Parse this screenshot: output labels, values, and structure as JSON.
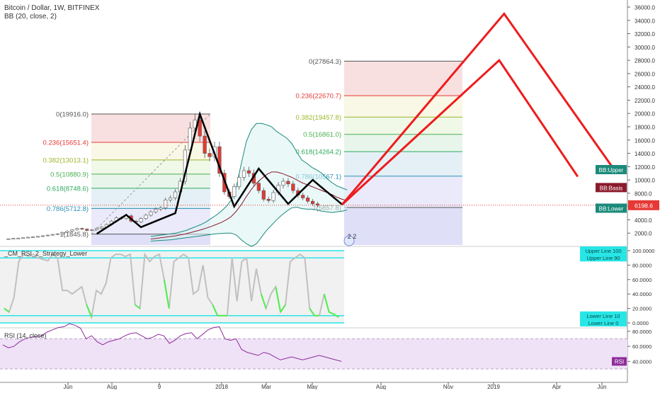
{
  "header": {
    "symbol_title": "Bitcoin / Dollar, 1W, BITFINEX",
    "indicator_bb": "BB (20, close, 2)"
  },
  "colors": {
    "up_candle": "#ffffff",
    "down_candle": "#e53935",
    "candle_outline": "#555555",
    "bb_upper": "#1b8a7a",
    "bb_basis": "#8b1a2c",
    "bb_lower": "#1b8a7a",
    "bb_fill": "#d9f2f2",
    "pattern_line": "#000000",
    "projection_line": "#ee1c1c",
    "rsi_line": "#8e2c9a",
    "rsi_band": "#efe2f7",
    "stoch_line": "#c0c0c0",
    "stoch_low_signal": "#4ef04e",
    "cyan_line": "#28e6e6",
    "price_line": "#e53935"
  },
  "chart_data": [
    {
      "type": "candlestick",
      "title": "Bitcoin / Dollar, 1W, BITFINEX",
      "x_ticks": [
        "Jun",
        "Aug",
        "9",
        "2018",
        "Mar",
        "May",
        "Aug",
        "Nov",
        "2019",
        "Apr",
        "Jun"
      ],
      "y_ticks": [
        "2000.0",
        "4000.0",
        "6000.0",
        "8000.0",
        "10000.0",
        "12000.0",
        "14000.0",
        "16000.0",
        "18000.0",
        "20000.0",
        "22000.0",
        "24000.0",
        "26000.0",
        "28000.0",
        "30000.0",
        "32000.0",
        "34000.0",
        "36000.0"
      ],
      "ylim": [
        0,
        36000
      ],
      "last_price_label": "6198.6",
      "close_series": [
        1100,
        1150,
        1200,
        1250,
        1300,
        1380,
        1450,
        1500,
        1600,
        1700,
        1800,
        1900,
        2100,
        2300,
        2500,
        2700,
        2600,
        2400,
        2500,
        2700,
        2900,
        3300,
        3800,
        4300,
        4200,
        4600,
        3800,
        3700,
        4200,
        4700,
        5200,
        5600,
        5800,
        7000,
        7300,
        8200,
        9800,
        14500,
        17800,
        19000,
        16600,
        14000,
        13500,
        15000,
        11000,
        8200,
        7500,
        9000,
        10400,
        11400,
        11000,
        9500,
        8400,
        7100,
        6900,
        8100,
        9200,
        9800,
        9400,
        8400,
        7700,
        7300,
        6800,
        6400,
        6200
      ],
      "bb_upper": [
        1500,
        1600,
        1700,
        1800,
        1900,
        2000,
        2200,
        2400,
        2700,
        3000,
        3300,
        3700,
        4200,
        4700,
        5300,
        6000,
        7000,
        9000,
        12500,
        15800,
        17600,
        18500,
        18500,
        18300,
        18000,
        17300,
        16800,
        16300,
        15500,
        14200,
        13000,
        12500,
        11900,
        11500,
        11000,
        10200,
        9600,
        9100,
        8800,
        8500
      ],
      "bb_basis": [
        1100,
        1200,
        1300,
        1400,
        1500,
        1600,
        1750,
        1900,
        2100,
        2300,
        2500,
        2750,
        3000,
        3300,
        3600,
        4000,
        4500,
        5300,
        6300,
        7500,
        8600,
        9500,
        10200,
        10800,
        11200,
        11200,
        11000,
        10700,
        10400,
        10000,
        9600,
        9300,
        9000,
        8700,
        8400,
        8100,
        7800,
        7400,
        7100,
        6900
      ],
      "bb_lower": [
        800,
        850,
        900,
        950,
        1000,
        1100,
        1200,
        1300,
        1400,
        1500,
        1600,
        1700,
        1800,
        1900,
        1950,
        2000,
        2000,
        1700,
        1000,
        400,
        0,
        400,
        1400,
        2400,
        3200,
        4000,
        4700,
        5300,
        5800,
        5900,
        5700,
        5600,
        5600,
        5500,
        5300,
        5200,
        5100,
        5200,
        5300,
        5500
      ],
      "pattern_points": [
        {
          "x_week": 19,
          "y": 1900
        },
        {
          "x_week": 25,
          "y": 4750
        },
        {
          "x_week": 28,
          "y": 2900
        },
        {
          "x_week": 35,
          "y": 5000
        },
        {
          "x_week": 40,
          "y": 19900
        },
        {
          "x_week": 47,
          "y": 6000
        },
        {
          "x_week": 52,
          "y": 11700
        },
        {
          "x_week": 58,
          "y": 6400
        },
        {
          "x_week": 63,
          "y": 10000
        },
        {
          "x_week": 69,
          "y": 6300
        }
      ],
      "projection_lines": [
        [
          {
            "x_week": 69,
            "y": 6300
          },
          {
            "x_week": 102,
            "y": 35000
          },
          {
            "x_week": 124,
            "y": 12000
          }
        ],
        [
          {
            "x_week": 69,
            "y": 6300
          },
          {
            "x_week": 101,
            "y": 28000
          },
          {
            "x_week": 117,
            "y": 10500
          }
        ]
      ],
      "fib_sets": [
        {
          "levels": [
            {
              "label": "0(19916.0)",
              "value": 19916.0,
              "color": "#555555"
            },
            {
              "label": "0.236(15651.4)",
              "value": 15651.4,
              "color": "#e53935"
            },
            {
              "label": "0.382(13013.1)",
              "value": 13013.1,
              "color": "#9ab82a"
            },
            {
              "label": "0.5(10880.9)",
              "value": 10880.9,
              "color": "#4caf50"
            },
            {
              "label": "0.618(8748.6)",
              "value": 8748.6,
              "color": "#2eaa5f"
            },
            {
              "label": "0.786(5712.8)",
              "value": 5712.8,
              "color": "#2a8fb5"
            },
            {
              "label": "1(1845.8)",
              "value": 1845.8,
              "color": "#555555"
            }
          ]
        },
        {
          "levels": [
            {
              "label": "0(27864.3)",
              "value": 27864.3,
              "color": "#555555"
            },
            {
              "label": "0.236(22670.7)",
              "value": 22670.7,
              "color": "#e53935"
            },
            {
              "label": "0.382(19457.8)",
              "value": 19457.8,
              "color": "#9ab82a"
            },
            {
              "label": "0.5(16861.0)",
              "value": 16861.0,
              "color": "#4caf50"
            },
            {
              "label": "0.618(14264.2)",
              "value": 14264.2,
              "color": "#2eaa5f"
            },
            {
              "label": "0.786(10567.1)",
              "value": 10567.1,
              "color": "#2a8fb5"
            },
            {
              "label": "1(5857.8)",
              "value": 5857.8,
              "color": "#555555"
            }
          ]
        }
      ],
      "legend_tags": [
        {
          "text": "BB:Upper",
          "color": "#1b8a7a"
        },
        {
          "text": "BB:Basis",
          "color": "#8b1a2c"
        },
        {
          "text": "BB:Lower",
          "color": "#1b8a7a"
        }
      ],
      "event_badge": "2 2"
    },
    {
      "type": "line",
      "title": "_CM_RSI_2_Strategy_Lower",
      "y_ticks": [
        "0.0000",
        "20.0000",
        "40.0000",
        "60.0000",
        "80.0000",
        "100.0000"
      ],
      "ylim": [
        0,
        100
      ],
      "upper_lines": [
        {
          "text": "Upper Line 100",
          "value": 100
        },
        {
          "text": "Upper Line 90",
          "value": 90
        }
      ],
      "lower_lines": [
        {
          "text": "Lower Line 10",
          "value": 10
        },
        {
          "text": "Lower Line 0",
          "value": 0
        }
      ],
      "values": [
        20,
        15,
        35,
        85,
        95,
        92,
        95,
        90,
        88,
        86,
        95,
        90,
        45,
        45,
        40,
        45,
        50,
        25,
        8,
        45,
        40,
        55,
        90,
        95,
        95,
        92,
        95,
        25,
        20,
        95,
        85,
        92,
        95,
        60,
        20,
        85,
        90,
        95,
        90,
        40,
        45,
        80,
        35,
        25,
        10,
        10,
        10,
        90,
        30,
        85,
        90,
        30,
        75,
        40,
        20,
        40,
        50,
        15,
        25,
        85,
        90,
        95,
        90,
        20,
        10,
        10,
        40,
        15,
        12,
        8
      ]
    },
    {
      "type": "line",
      "title": "RSI (14, close)",
      "y_ticks": [
        "40.0000",
        "60.0000",
        "80.0000"
      ],
      "ylim": [
        30,
        95
      ],
      "series_label": "RSI",
      "values": [
        62,
        58,
        60,
        66,
        70,
        72,
        73,
        74,
        79,
        82,
        85,
        86,
        90,
        88,
        84,
        70,
        74,
        66,
        62,
        66,
        68,
        70,
        74,
        77,
        78,
        74,
        70,
        72,
        76,
        74,
        64,
        68,
        74,
        77,
        78,
        70,
        76,
        82,
        85,
        86,
        70,
        68,
        70,
        56,
        52,
        50,
        48,
        52,
        50,
        46,
        42,
        44,
        46,
        44,
        42,
        44,
        46,
        48,
        46,
        44,
        42,
        40
      ]
    }
  ]
}
